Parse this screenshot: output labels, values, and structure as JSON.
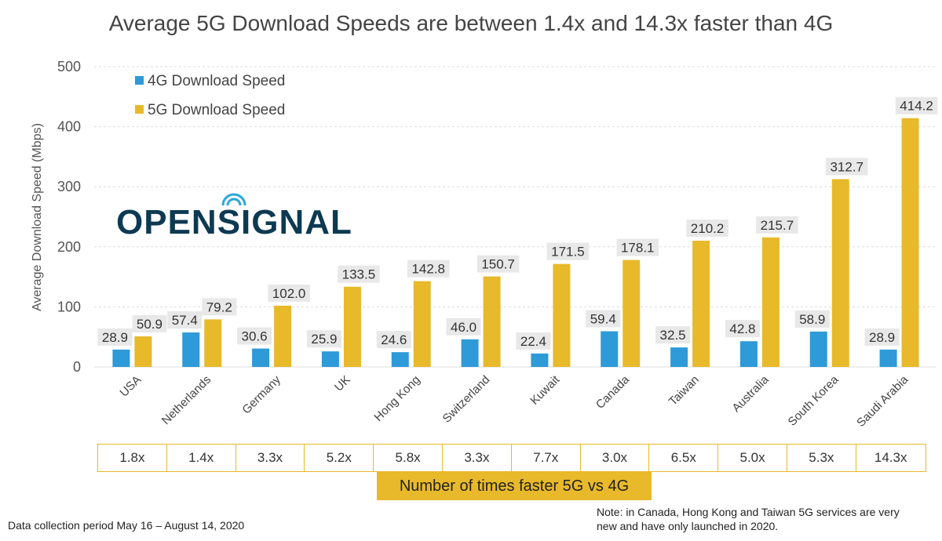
{
  "chart_data": {
    "type": "bar",
    "title": "Average 5G Download Speeds are between 1.4x and 14.3x faster than 4G",
    "ylabel": "Average Download Speed (Mbps)",
    "xlabel": "",
    "ylim": [
      0,
      500
    ],
    "yticks": [
      "0",
      "100",
      "200",
      "300",
      "400",
      "500"
    ],
    "grid": true,
    "legend_placement": "top-left",
    "categories": [
      "USA",
      "Netherlands",
      "Germany",
      "UK",
      "Hong Kong",
      "Switzerland",
      "Kuwait",
      "Canada",
      "Taiwan",
      "Australia",
      "South Korea",
      "Saudi Arabia"
    ],
    "series": [
      {
        "name": "4G Download Speed",
        "color": "#2e9ad8",
        "values": [
          28.9,
          57.4,
          30.6,
          25.9,
          24.6,
          46.0,
          22.4,
          59.4,
          32.5,
          42.8,
          58.9,
          28.9
        ],
        "labels": [
          "28.9",
          "57.4",
          "30.6",
          "25.9",
          "24.6",
          "46.0",
          "22.4",
          "59.4",
          "32.5",
          "42.8",
          "58.9",
          "28.9"
        ]
      },
      {
        "name": "5G Download Speed",
        "color": "#e8b92a",
        "values": [
          50.9,
          79.2,
          102.0,
          133.5,
          142.8,
          150.7,
          171.5,
          178.1,
          210.2,
          215.7,
          312.7,
          414.2
        ],
        "labels": [
          "50.9",
          "79.2",
          "102.0",
          "133.5",
          "142.8",
          "150.7",
          "171.5",
          "178.1",
          "210.2",
          "215.7",
          "312.7",
          "414.2"
        ]
      }
    ],
    "ratios": [
      "1.8x",
      "1.4x",
      "3.3x",
      "5.2x",
      "5.8x",
      "3.3x",
      "7.7x",
      "3.0x",
      "6.5x",
      "5.0x",
      "5.3x",
      "14.3x"
    ],
    "ratio_caption": "Number of times faster 5G vs 4G"
  },
  "logo": {
    "text": "OPENSIGNAL",
    "color": "#0d3a52",
    "accent": "#2aa8d8"
  },
  "footer": {
    "left": "Data collection period May 16 – August 14, 2020",
    "note": "Note: in Canada, Hong Kong and Taiwan 5G services are very new and have only launched in 2020."
  }
}
